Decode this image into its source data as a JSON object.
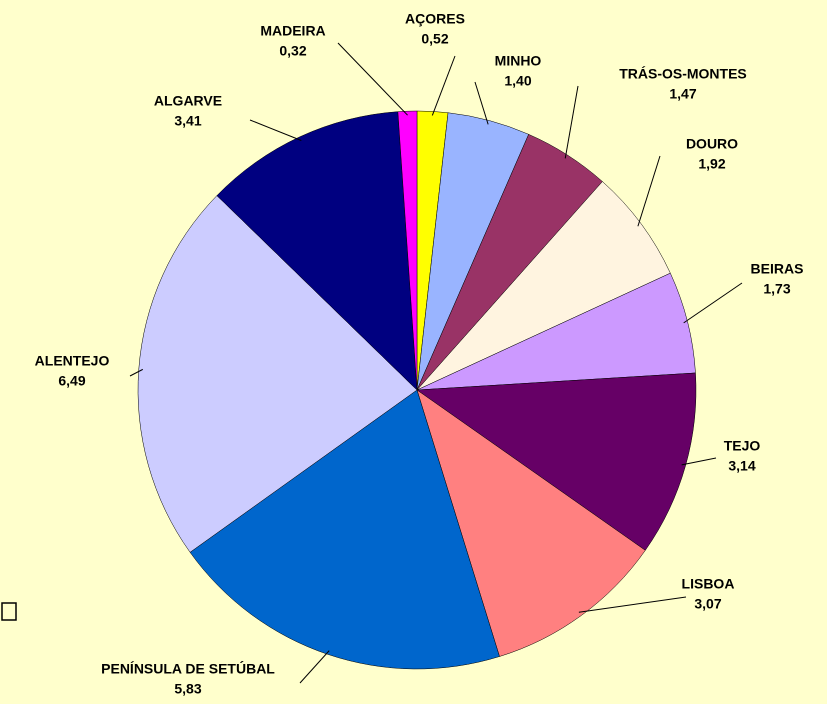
{
  "chart_data": {
    "type": "pie",
    "categories": [
      "AÇORES",
      "MINHO",
      "TRÁS-OS-MONTES",
      "DOURO",
      "BEIRAS",
      "TEJO",
      "LISBOA",
      "PENÍNSULA DE SETÚBAL",
      "ALENTEJO",
      "ALGARVE",
      "MADEIRA"
    ],
    "values": [
      0.52,
      1.4,
      1.47,
      1.92,
      1.73,
      3.14,
      3.07,
      5.83,
      6.49,
      3.41,
      0.32
    ],
    "value_labels": [
      "0,52",
      "1,40",
      "1,47",
      "1,92",
      "1,73",
      "3,14",
      "3,07",
      "5,83",
      "6,49",
      "3,41",
      "0,32"
    ],
    "colors": [
      "#ffff00",
      "#99b4ff",
      "#993366",
      "#fff4e0",
      "#cc99ff",
      "#660066",
      "#ff8080",
      "#0066cc",
      "#ccccff",
      "#000080",
      "#ff00ff"
    ]
  }
}
